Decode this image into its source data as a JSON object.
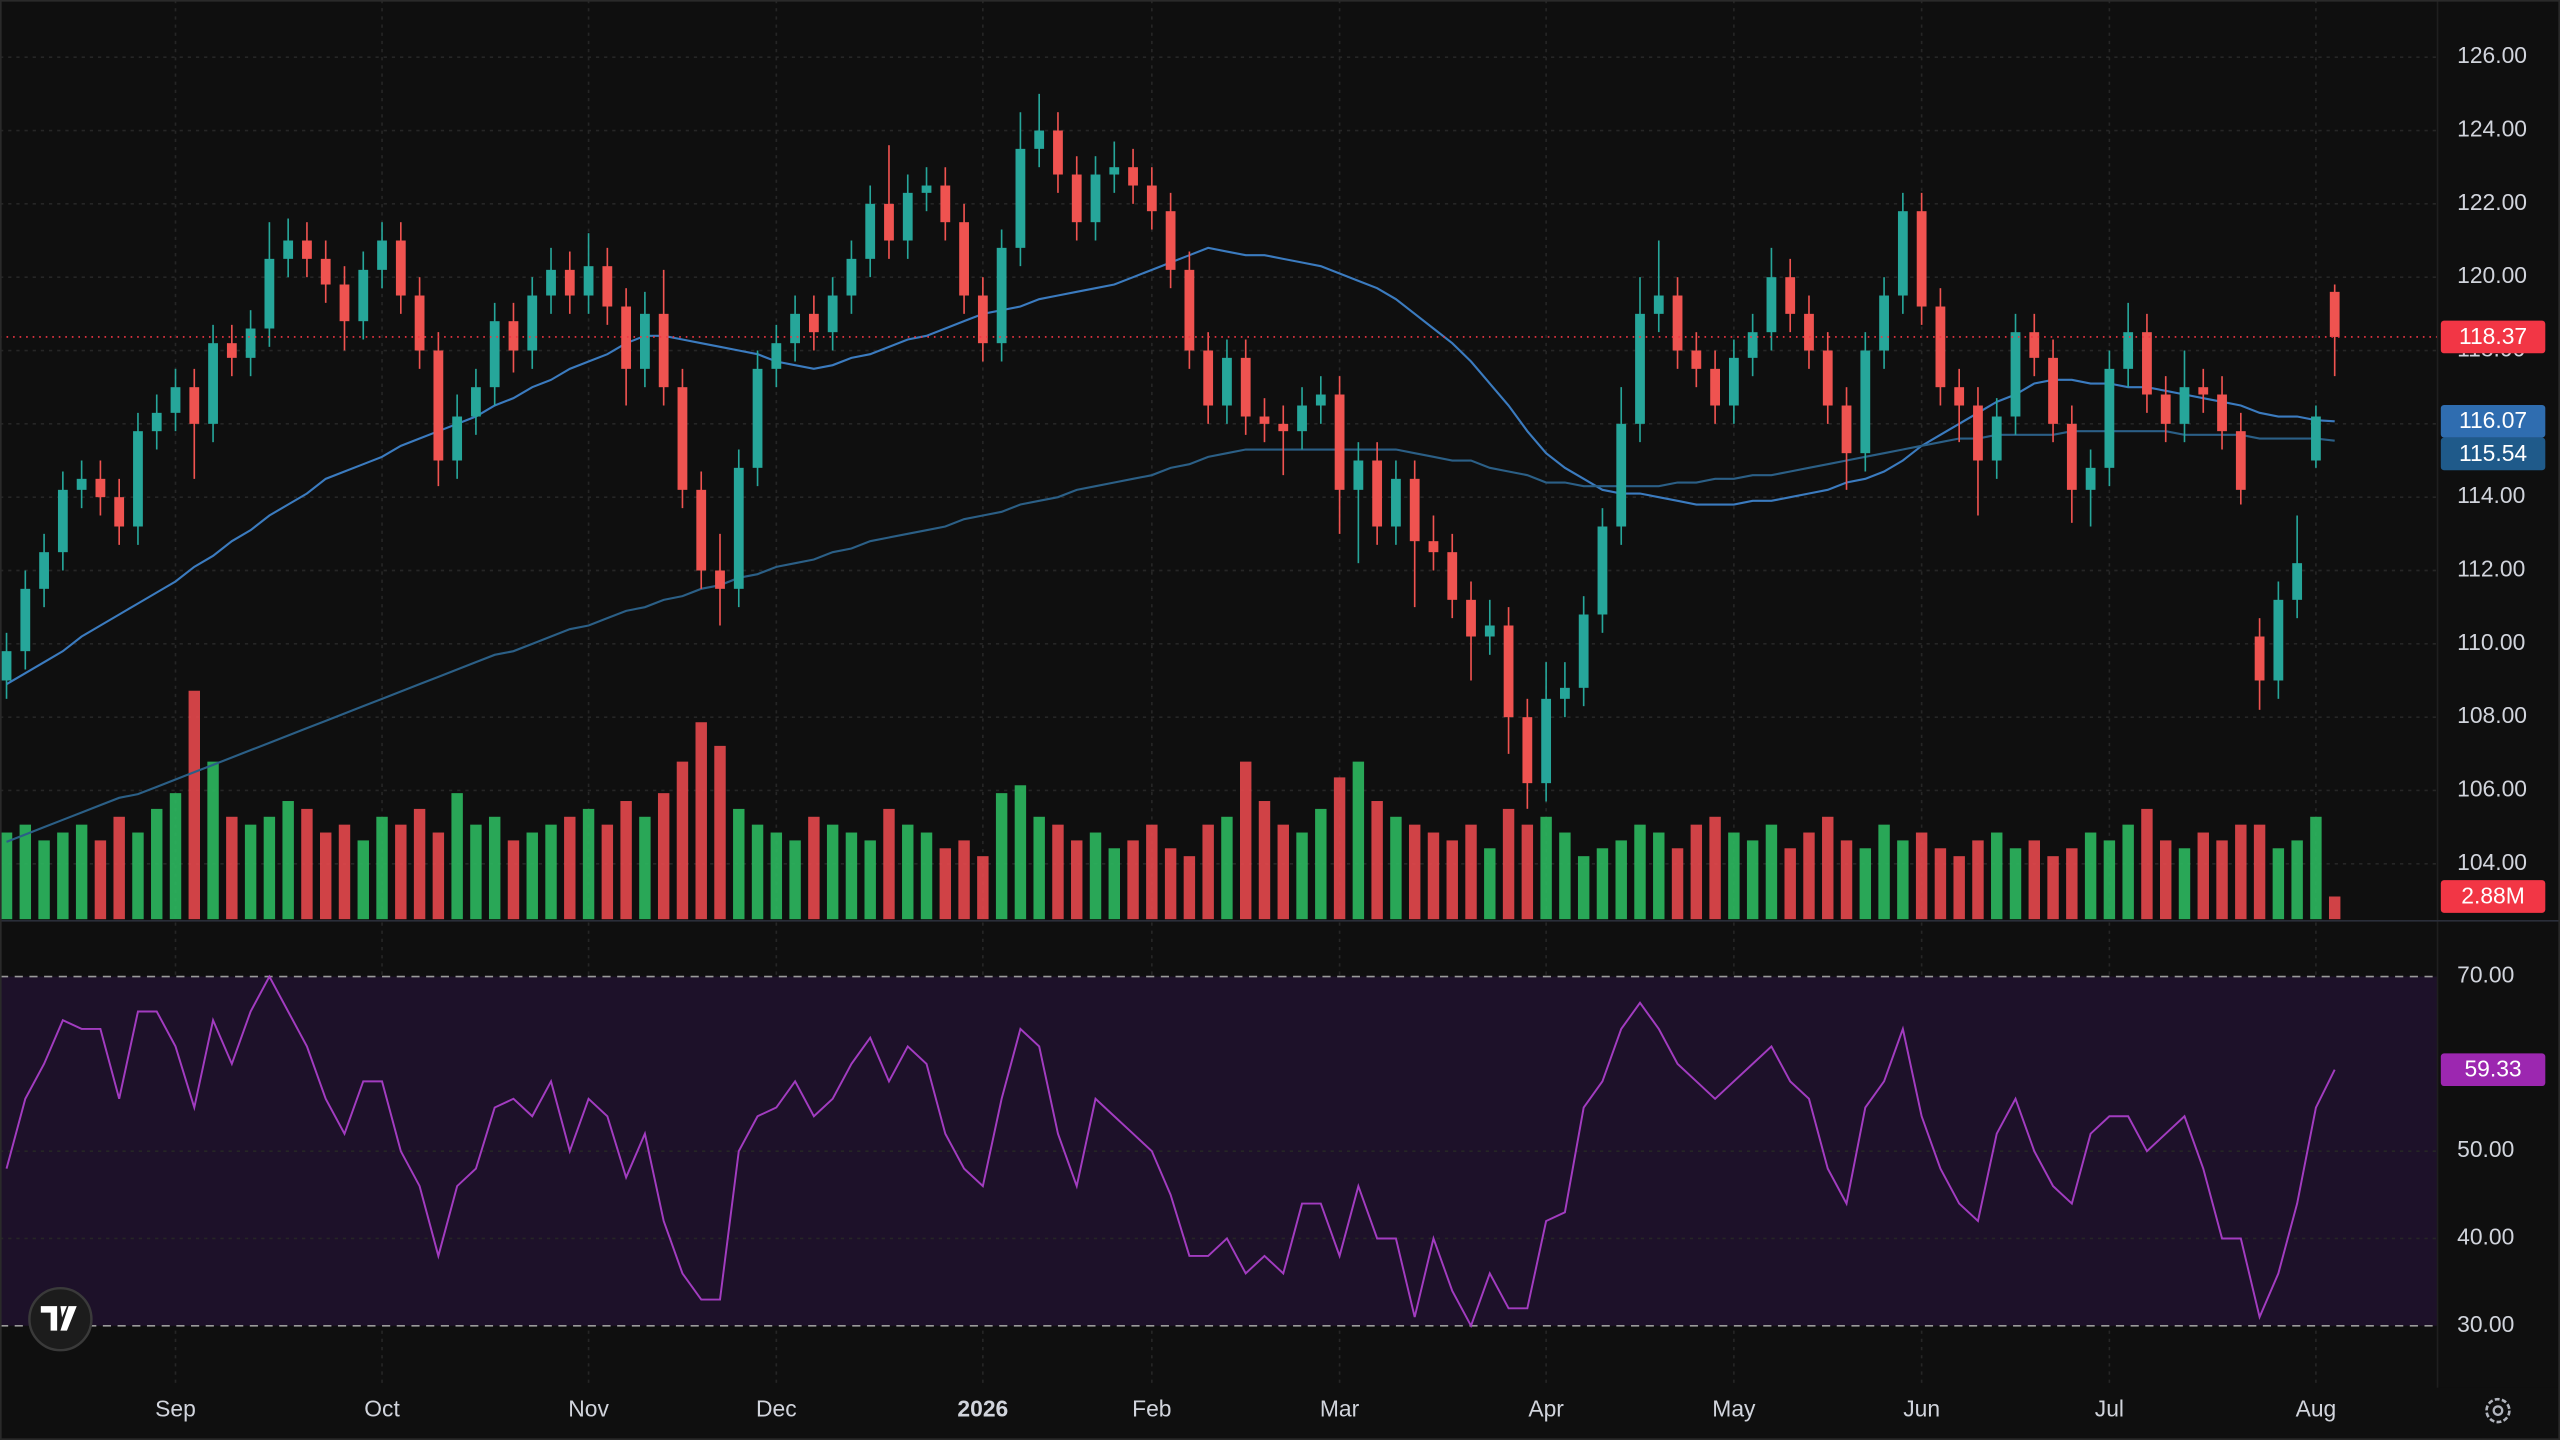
{
  "chart_data": {
    "type": "candlestick",
    "up_color": "#26a69a",
    "down_color": "#ef5350",
    "categories": [
      null,
      null,
      null,
      null,
      null,
      null,
      null,
      null,
      null,
      "Sep",
      null,
      null,
      null,
      null,
      null,
      null,
      null,
      null,
      null,
      null,
      "Oct",
      null,
      null,
      null,
      null,
      null,
      null,
      null,
      null,
      null,
      null,
      "Nov",
      null,
      null,
      null,
      null,
      null,
      null,
      null,
      null,
      null,
      "Dec",
      null,
      null,
      null,
      null,
      null,
      null,
      null,
      null,
      null,
      null,
      "2026",
      null,
      null,
      null,
      null,
      null,
      null,
      null,
      null,
      "Feb",
      null,
      null,
      null,
      null,
      null,
      null,
      null,
      null,
      null,
      "Mar",
      null,
      null,
      null,
      null,
      null,
      null,
      null,
      null,
      null,
      null,
      "Apr",
      null,
      null,
      null,
      null,
      null,
      null,
      null,
      null,
      null,
      "May",
      null,
      null,
      null,
      null,
      null,
      null,
      null,
      null,
      null,
      "Jun",
      null,
      null,
      null,
      null,
      null,
      null,
      null,
      null,
      null,
      "Jul",
      null,
      null,
      null,
      null,
      null,
      null,
      null,
      null,
      null,
      null,
      "Aug",
      null
    ],
    "open": [
      109.0,
      109.8,
      111.5,
      112.5,
      114.2,
      114.5,
      114.0,
      113.2,
      115.8,
      116.3,
      117.0,
      116.0,
      118.2,
      117.8,
      118.6,
      120.5,
      121.0,
      120.5,
      119.8,
      118.8,
      120.2,
      121.0,
      119.5,
      118.0,
      115.0,
      116.2,
      117.0,
      118.8,
      118.0,
      119.5,
      120.2,
      119.5,
      120.3,
      119.2,
      117.5,
      119.0,
      117.0,
      114.2,
      112.0,
      111.5,
      114.8,
      117.5,
      118.2,
      119.0,
      118.5,
      119.5,
      120.5,
      122.0,
      121.0,
      122.3,
      122.5,
      121.5,
      119.5,
      118.2,
      120.8,
      123.5,
      124.0,
      122.8,
      121.5,
      122.8,
      123.0,
      122.5,
      121.8,
      120.2,
      118.0,
      116.5,
      117.8,
      116.2,
      116.0,
      115.8,
      116.5,
      116.8,
      114.2,
      115.0,
      113.2,
      114.5,
      112.8,
      112.5,
      111.2,
      110.2,
      110.5,
      108.0,
      106.2,
      108.5,
      108.8,
      110.8,
      113.2,
      116.0,
      119.0,
      119.5,
      118.0,
      117.5,
      116.5,
      117.8,
      118.5,
      120.0,
      119.0,
      118.0,
      116.5,
      115.2,
      118.0,
      119.5,
      121.8,
      119.2,
      117.0,
      116.5,
      115.0,
      116.2,
      118.5,
      117.8,
      116.0,
      114.2,
      114.8,
      117.5,
      118.5,
      116.8,
      116.0,
      117.0,
      116.8,
      115.8,
      110.2,
      109.0,
      111.2,
      115.0,
      119.6
    ],
    "high": [
      110.3,
      112.0,
      113.0,
      114.7,
      115.0,
      115.0,
      114.5,
      116.3,
      116.8,
      117.5,
      117.5,
      118.7,
      118.7,
      119.1,
      121.5,
      121.6,
      121.5,
      121.0,
      120.3,
      120.7,
      121.5,
      121.5,
      120.0,
      118.5,
      116.8,
      117.5,
      119.3,
      119.3,
      120.0,
      120.8,
      120.7,
      121.2,
      120.8,
      119.7,
      119.6,
      120.2,
      117.5,
      114.7,
      113.0,
      115.3,
      118.0,
      118.7,
      119.5,
      119.5,
      120.0,
      121.0,
      122.5,
      123.6,
      122.8,
      123.0,
      123.0,
      122.0,
      120.0,
      121.3,
      124.5,
      125.0,
      124.5,
      123.3,
      123.3,
      123.7,
      123.5,
      123.0,
      122.3,
      120.7,
      118.5,
      118.3,
      118.3,
      116.7,
      116.5,
      117.0,
      117.3,
      117.3,
      115.5,
      115.5,
      115.0,
      115.0,
      113.5,
      113.0,
      111.7,
      111.2,
      111.0,
      108.5,
      109.5,
      109.5,
      111.3,
      113.7,
      117.0,
      120.0,
      121.0,
      120.0,
      118.5,
      118.0,
      118.3,
      119.0,
      120.8,
      120.5,
      119.5,
      118.5,
      117.0,
      118.5,
      120.0,
      122.3,
      122.3,
      119.7,
      117.5,
      117.0,
      116.7,
      119.0,
      119.0,
      118.3,
      116.5,
      115.3,
      118.0,
      119.3,
      119.0,
      117.3,
      118.0,
      117.5,
      117.3,
      116.3,
      110.7,
      111.7,
      113.5,
      116.5,
      119.8
    ],
    "low": [
      108.5,
      109.3,
      111.0,
      112.0,
      113.7,
      113.5,
      112.7,
      112.7,
      115.3,
      115.8,
      114.5,
      115.5,
      117.3,
      117.3,
      118.1,
      120.0,
      120.0,
      119.3,
      118.0,
      118.3,
      119.7,
      119.0,
      117.5,
      114.3,
      114.5,
      115.7,
      116.5,
      117.4,
      117.5,
      119.0,
      119.0,
      119.0,
      118.7,
      116.5,
      117.0,
      116.5,
      113.7,
      111.5,
      110.5,
      111.0,
      114.3,
      117.0,
      117.7,
      118.0,
      118.0,
      119.0,
      120.0,
      120.5,
      120.5,
      121.8,
      121.0,
      119.0,
      117.7,
      117.7,
      120.3,
      123.0,
      122.3,
      121.0,
      121.0,
      122.3,
      122.0,
      121.3,
      119.7,
      117.5,
      116.0,
      116.0,
      115.7,
      115.5,
      114.6,
      115.3,
      116.0,
      113.0,
      112.2,
      112.7,
      112.7,
      111.0,
      112.0,
      110.7,
      109.0,
      109.7,
      107.0,
      105.5,
      105.7,
      108.0,
      108.3,
      110.3,
      112.7,
      115.5,
      118.5,
      117.5,
      117.0,
      116.0,
      116.0,
      117.3,
      118.0,
      118.5,
      117.5,
      116.0,
      114.2,
      114.7,
      117.5,
      119.0,
      118.7,
      116.5,
      115.5,
      113.5,
      114.5,
      115.7,
      117.3,
      115.5,
      113.3,
      113.2,
      114.3,
      117.0,
      116.3,
      115.5,
      115.5,
      116.3,
      115.3,
      113.8,
      108.2,
      108.5,
      110.7,
      114.8,
      117.3
    ],
    "close": [
      109.8,
      111.5,
      112.5,
      114.2,
      114.5,
      114.0,
      113.2,
      115.8,
      116.3,
      117.0,
      116.0,
      118.2,
      117.8,
      118.6,
      120.5,
      121.0,
      120.5,
      119.8,
      118.8,
      120.2,
      121.0,
      119.5,
      118.0,
      115.0,
      116.2,
      117.0,
      118.8,
      118.0,
      119.5,
      120.2,
      119.5,
      120.3,
      119.2,
      117.5,
      119.0,
      117.0,
      114.2,
      112.0,
      111.5,
      114.8,
      117.5,
      118.2,
      119.0,
      118.5,
      119.5,
      120.5,
      122.0,
      121.0,
      122.3,
      122.5,
      121.5,
      119.5,
      118.2,
      120.8,
      123.5,
      124.0,
      122.8,
      121.5,
      122.8,
      123.0,
      122.5,
      121.8,
      120.2,
      118.0,
      116.5,
      117.8,
      116.2,
      116.0,
      115.8,
      116.5,
      116.8,
      114.2,
      115.0,
      113.2,
      114.5,
      112.8,
      112.5,
      111.2,
      110.2,
      110.5,
      108.0,
      106.2,
      108.5,
      108.8,
      110.8,
      113.2,
      116.0,
      119.0,
      119.5,
      118.0,
      117.5,
      116.5,
      117.8,
      118.5,
      120.0,
      119.0,
      118.0,
      116.5,
      115.2,
      118.0,
      119.5,
      121.8,
      119.2,
      117.0,
      116.5,
      115.0,
      116.2,
      118.5,
      117.8,
      116.0,
      114.2,
      114.8,
      117.5,
      118.5,
      116.8,
      116.0,
      117.0,
      116.8,
      115.8,
      114.2,
      109.0,
      111.2,
      112.2,
      116.2,
      118.37
    ],
    "last_price_color": "#f23645",
    "ylim": [
      102.49,
      127.56
    ],
    "yticks": [
      {
        "value": 104,
        "label": "104.00"
      },
      {
        "value": 106,
        "label": "106.00"
      },
      {
        "value": 108,
        "label": "108.00"
      },
      {
        "value": 110,
        "label": "110.00"
      },
      {
        "value": 112,
        "label": "112.00"
      },
      {
        "value": 114,
        "label": "114.00"
      },
      {
        "value": 116,
        "label": "116.00"
      },
      {
        "value": 118,
        "label": "118.00"
      },
      {
        "value": 120,
        "label": "120.00"
      },
      {
        "value": 122,
        "label": "122.00"
      },
      {
        "value": 124,
        "label": "124.00"
      },
      {
        "value": 126,
        "label": "126.00"
      }
    ],
    "grid": true,
    "moving_averages": [
      {
        "color": "#3b7bbf",
        "label_color": "#2f6db0",
        "values": [
          108.9,
          109.2,
          109.5,
          109.8,
          110.2,
          110.5,
          110.8,
          111.1,
          111.4,
          111.7,
          112.1,
          112.4,
          112.8,
          113.1,
          113.5,
          113.8,
          114.1,
          114.5,
          114.7,
          114.9,
          115.1,
          115.4,
          115.6,
          115.8,
          116.0,
          116.2,
          116.5,
          116.7,
          117.0,
          117.2,
          117.5,
          117.7,
          117.9,
          118.2,
          118.4,
          118.4,
          118.3,
          118.2,
          118.1,
          118.0,
          117.9,
          117.7,
          117.6,
          117.5,
          117.6,
          117.8,
          117.9,
          118.1,
          118.3,
          118.4,
          118.6,
          118.8,
          119.0,
          119.1,
          119.2,
          119.4,
          119.5,
          119.6,
          119.7,
          119.8,
          120.0,
          120.2,
          120.4,
          120.6,
          120.8,
          120.7,
          120.6,
          120.6,
          120.5,
          120.4,
          120.3,
          120.1,
          119.9,
          119.7,
          119.4,
          119.0,
          118.6,
          118.2,
          117.7,
          117.1,
          116.5,
          115.8,
          115.2,
          114.8,
          114.5,
          114.2,
          114.1,
          114.1,
          114.0,
          113.9,
          113.8,
          113.8,
          113.8,
          113.9,
          113.9,
          114.0,
          114.1,
          114.2,
          114.4,
          114.5,
          114.7,
          115.0,
          115.4,
          115.7,
          116.0,
          116.3,
          116.6,
          116.8,
          117.1,
          117.2,
          117.2,
          117.1,
          117.1,
          117.0,
          117.0,
          116.9,
          116.8,
          116.7,
          116.6,
          116.5,
          116.3,
          116.2,
          116.2,
          116.1,
          116.07
        ]
      },
      {
        "color": "#2b5f86",
        "label_color": "#1f5a8a",
        "values": [
          104.6,
          104.8,
          105.0,
          105.2,
          105.4,
          105.6,
          105.8,
          105.9,
          106.1,
          106.3,
          106.5,
          106.7,
          106.9,
          107.1,
          107.3,
          107.5,
          107.7,
          107.9,
          108.1,
          108.3,
          108.5,
          108.7,
          108.9,
          109.1,
          109.3,
          109.5,
          109.7,
          109.8,
          110.0,
          110.2,
          110.4,
          110.5,
          110.7,
          110.9,
          111.0,
          111.2,
          111.3,
          111.5,
          111.6,
          111.8,
          111.9,
          112.1,
          112.2,
          112.3,
          112.5,
          112.6,
          112.8,
          112.9,
          113.0,
          113.1,
          113.2,
          113.4,
          113.5,
          113.6,
          113.8,
          113.9,
          114.0,
          114.2,
          114.3,
          114.4,
          114.5,
          114.6,
          114.8,
          114.9,
          115.1,
          115.2,
          115.3,
          115.3,
          115.3,
          115.3,
          115.3,
          115.3,
          115.3,
          115.3,
          115.3,
          115.2,
          115.1,
          115.0,
          115.0,
          114.8,
          114.7,
          114.6,
          114.4,
          114.4,
          114.3,
          114.3,
          114.3,
          114.3,
          114.3,
          114.4,
          114.4,
          114.5,
          114.5,
          114.6,
          114.6,
          114.7,
          114.8,
          114.9,
          115.0,
          115.1,
          115.2,
          115.3,
          115.4,
          115.5,
          115.6,
          115.6,
          115.7,
          115.7,
          115.7,
          115.7,
          115.8,
          115.8,
          115.8,
          115.8,
          115.8,
          115.8,
          115.7,
          115.7,
          115.7,
          115.7,
          115.6,
          115.6,
          115.6,
          115.6,
          115.54
        ]
      }
    ],
    "volume": {
      "up_color": "#2cb85f",
      "down_color": "#e5484d",
      "label_color": "#f23645",
      "ylim": [
        0,
        40
      ],
      "last_label": "2.88M",
      "values": [
        11,
        12,
        10,
        11,
        12,
        10,
        13,
        11,
        14,
        16,
        29,
        20,
        13,
        12,
        13,
        15,
        14,
        11,
        12,
        10,
        13,
        12,
        14,
        11,
        16,
        12,
        13,
        10,
        11,
        12,
        13,
        14,
        12,
        15,
        13,
        16,
        20,
        25,
        22,
        14,
        12,
        11,
        10,
        13,
        12,
        11,
        10,
        14,
        12,
        11,
        9,
        10,
        8,
        16,
        17,
        13,
        12,
        10,
        11,
        9,
        10,
        12,
        9,
        8,
        12,
        13,
        20,
        15,
        12,
        11,
        14,
        18,
        20,
        15,
        13,
        12,
        11,
        10,
        12,
        9,
        14,
        12,
        13,
        11,
        8,
        9,
        10,
        12,
        11,
        9,
        12,
        13,
        11,
        10,
        12,
        9,
        11,
        13,
        10,
        9,
        12,
        10,
        11,
        9,
        8,
        10,
        11,
        9,
        10,
        8,
        9,
        11,
        10,
        12,
        14,
        10,
        9,
        11,
        10,
        12,
        12,
        9,
        10,
        13,
        2.88
      ]
    },
    "rsi": {
      "color": "#a23cc0",
      "band_color": "#1d1129",
      "label_color": "#9c27b0",
      "ylim": [
        22.9,
        76.2
      ],
      "band": [
        30,
        70
      ],
      "yticks": [
        {
          "value": 30,
          "label": "30.00"
        },
        {
          "value": 40,
          "label": "40.00"
        },
        {
          "value": 50,
          "label": "50.00"
        },
        {
          "value": 70,
          "label": "70.00"
        }
      ],
      "values": [
        48,
        56,
        60,
        65,
        64,
        64,
        56,
        66,
        66,
        62,
        55,
        65,
        60,
        66,
        70,
        66,
        62,
        56,
        52,
        58,
        58,
        50,
        46,
        38,
        46,
        48,
        55,
        56,
        54,
        58,
        50,
        56,
        54,
        47,
        52,
        42,
        36,
        33,
        33,
        50,
        54,
        55,
        58,
        54,
        56,
        60,
        63,
        58,
        62,
        60,
        52,
        48,
        46,
        56,
        64,
        62,
        52,
        46,
        56,
        54,
        52,
        50,
        45,
        38,
        38,
        40,
        36,
        38,
        36,
        44,
        44,
        38,
        46,
        40,
        40,
        31,
        40,
        34,
        30,
        36,
        32,
        32,
        42,
        43,
        55,
        58,
        64,
        67,
        64,
        60,
        58,
        56,
        58,
        60,
        62,
        58,
        56,
        48,
        44,
        55,
        58,
        64,
        54,
        48,
        44,
        42,
        52,
        56,
        50,
        46,
        44,
        52,
        54,
        54,
        50,
        52,
        54,
        48,
        40,
        40,
        31,
        36,
        44,
        55,
        59.33
      ]
    }
  }
}
